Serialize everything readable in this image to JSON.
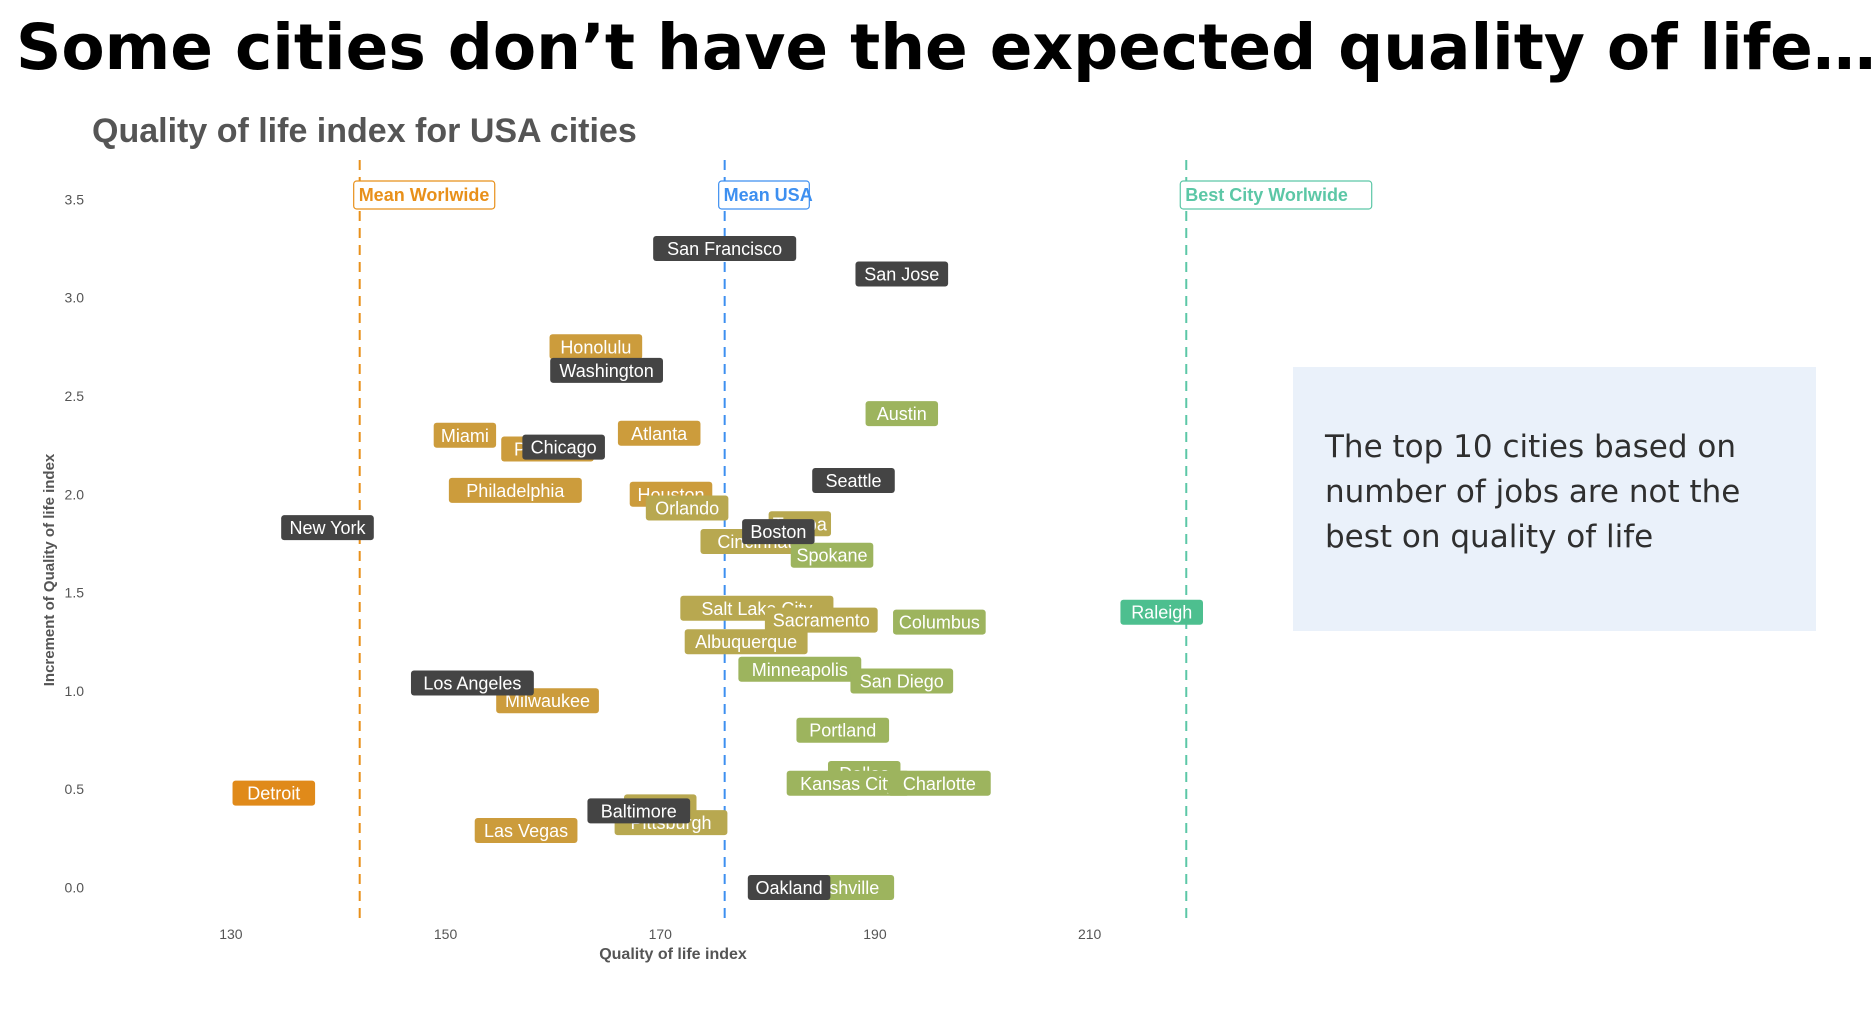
{
  "slide": {
    "title": "Some cities don’t have the expected quality of life…",
    "note": "The top 10 cities based on number of jobs are not the best on quality of life"
  },
  "chart_data": {
    "type": "scatter",
    "title": "Quality of life index for USA cities",
    "xlabel": "Quality of life index",
    "ylabel": "Increment of Quality of life index",
    "xlim": [
      122,
      220
    ],
    "ylim": [
      -0.15,
      3.7
    ],
    "x_ticks": [
      130,
      150,
      170,
      190,
      210
    ],
    "y_ticks": [
      0.0,
      0.5,
      1.0,
      1.5,
      2.0,
      2.5,
      3.0,
      3.5
    ],
    "x_tick_labels": [
      "130",
      "150",
      "170",
      "190",
      "210"
    ],
    "y_tick_labels": [
      "0.0",
      "0.5",
      "1.0",
      "1.5",
      "2.0",
      "2.5",
      "3.0",
      "3.5"
    ],
    "grid": false,
    "reference_lines": [
      {
        "label": "Mean Worlwide",
        "x": 142,
        "color": "#e8901a"
      },
      {
        "label": "Mean USA",
        "x": 176,
        "color": "#3d8ff0"
      },
      {
        "label": "Best City Worlwide",
        "x": 219,
        "color": "#5cc7a6"
      }
    ],
    "colors": {
      "top_jobs": "#444444",
      "low": "#e08a1a",
      "mid_low": "#cc9c3c",
      "mid": "#b8a850",
      "mid_high": "#9db45e",
      "high": "#4dbf8f"
    },
    "points": [
      {
        "city": "San Francisco",
        "x": 176,
        "y": 3.25,
        "group": "top_jobs"
      },
      {
        "city": "San Jose",
        "x": 192.5,
        "y": 3.12,
        "group": "top_jobs"
      },
      {
        "city": "Honolulu",
        "x": 164,
        "y": 2.75,
        "group": "mid_low"
      },
      {
        "city": "Washington",
        "x": 165,
        "y": 2.63,
        "group": "top_jobs"
      },
      {
        "city": "Austin",
        "x": 192.5,
        "y": 2.41,
        "group": "mid_high"
      },
      {
        "city": "Miami",
        "x": 151.8,
        "y": 2.3,
        "group": "mid_low"
      },
      {
        "city": "Atlanta",
        "x": 169.9,
        "y": 2.31,
        "group": "mid_low"
      },
      {
        "city": "Portland",
        "x": 159.5,
        "y": 2.23,
        "group": "mid_low"
      },
      {
        "city": "Chicago",
        "x": 161,
        "y": 2.24,
        "group": "top_jobs"
      },
      {
        "city": "Seattle",
        "x": 188,
        "y": 2.07,
        "group": "top_jobs"
      },
      {
        "city": "Philadelphia",
        "x": 156.5,
        "y": 2.02,
        "group": "mid_low"
      },
      {
        "city": "Houston",
        "x": 171,
        "y": 2.0,
        "group": "mid_low"
      },
      {
        "city": "Orlando",
        "x": 172.5,
        "y": 1.93,
        "group": "mid"
      },
      {
        "city": "New York",
        "x": 139,
        "y": 1.83,
        "group": "top_jobs"
      },
      {
        "city": "Tampa",
        "x": 183,
        "y": 1.85,
        "group": "mid"
      },
      {
        "city": "Cincinnati",
        "x": 179,
        "y": 1.76,
        "group": "mid"
      },
      {
        "city": "Boston",
        "x": 181,
        "y": 1.81,
        "group": "top_jobs"
      },
      {
        "city": "Spokane",
        "x": 186,
        "y": 1.69,
        "group": "mid_high"
      },
      {
        "city": "Salt Lake City",
        "x": 179,
        "y": 1.42,
        "group": "mid"
      },
      {
        "city": "Sacramento",
        "x": 185,
        "y": 1.36,
        "group": "mid"
      },
      {
        "city": "Columbus",
        "x": 196,
        "y": 1.35,
        "group": "mid_high"
      },
      {
        "city": "Raleigh",
        "x": 220,
        "y": 1.4,
        "group": "high"
      },
      {
        "city": "Albuquerque",
        "x": 178,
        "y": 1.25,
        "group": "mid"
      },
      {
        "city": "Minneapolis",
        "x": 183,
        "y": 1.11,
        "group": "mid_high"
      },
      {
        "city": "San Diego",
        "x": 192.5,
        "y": 1.05,
        "group": "mid_high"
      },
      {
        "city": "Los Angeles",
        "x": 152.5,
        "y": 1.04,
        "group": "top_jobs"
      },
      {
        "city": "Milwaukee",
        "x": 159.5,
        "y": 0.95,
        "group": "mid_low"
      },
      {
        "city": "Portland",
        "x": 187,
        "y": 0.8,
        "group": "mid_high"
      },
      {
        "city": "Dallas",
        "x": 189,
        "y": 0.58,
        "group": "mid_high"
      },
      {
        "city": "Kansas City",
        "x": 187.5,
        "y": 0.53,
        "group": "mid_high"
      },
      {
        "city": "Charlotte",
        "x": 196,
        "y": 0.53,
        "group": "mid_high"
      },
      {
        "city": "Detroit",
        "x": 134,
        "y": 0.48,
        "group": "low"
      },
      {
        "city": "Denver",
        "x": 170,
        "y": 0.41,
        "group": "mid"
      },
      {
        "city": "Pittsburgh",
        "x": 171,
        "y": 0.33,
        "group": "mid"
      },
      {
        "city": "Baltimore",
        "x": 168,
        "y": 0.39,
        "group": "top_jobs"
      },
      {
        "city": "Las Vegas",
        "x": 157.5,
        "y": 0.29,
        "group": "mid_low"
      },
      {
        "city": "Nashville",
        "x": 187,
        "y": 0.0,
        "group": "mid_high"
      },
      {
        "city": "Oakland",
        "x": 182,
        "y": 0.0,
        "group": "top_jobs"
      }
    ]
  }
}
